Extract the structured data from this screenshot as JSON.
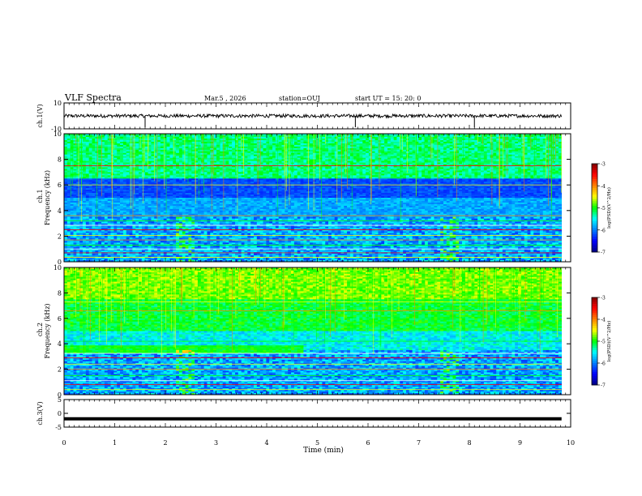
{
  "header": {
    "title": "VLF Spectra",
    "date": "Mar.5 , 2026",
    "station": "station=OUJ",
    "start": "start UT = 15: 20: 0"
  },
  "chart_data": [
    {
      "type": "line",
      "name": "ch1-waveform",
      "ylabel": "ch.1(V)",
      "ylim": [
        -10,
        10
      ],
      "yticks": [
        "10",
        "-10"
      ],
      "mean": 0,
      "noise_amplitude": 1.3,
      "spikes_min": [
        1.6,
        5.75,
        8.1
      ]
    },
    {
      "type": "heatmap",
      "name": "ch1-spectrogram",
      "ylabel_top": "ch.1",
      "ylabel": "Frequency (kHz)",
      "ylim": [
        0,
        10
      ],
      "yticks": [
        "0",
        "2",
        "4",
        "6",
        "8",
        "10"
      ],
      "colorbar": {
        "label": "log(PSD)(V^2/Hz)",
        "range": [
          -7,
          -3
        ],
        "ticks": [
          "-3",
          "-4",
          "-5",
          "-6",
          "-7"
        ]
      }
    },
    {
      "type": "heatmap",
      "name": "ch2-spectrogram",
      "ylabel_top": "ch.2",
      "ylabel": "Frequency (kHz)",
      "ylim": [
        0,
        10
      ],
      "yticks": [
        "0",
        "2",
        "4",
        "6",
        "8",
        "10"
      ],
      "colorbar": {
        "label": "log(PSD)(V^2/Hz)",
        "range": [
          -7,
          -3
        ],
        "ticks": [
          "-3",
          "-4",
          "-5",
          "-6",
          "-7"
        ]
      }
    },
    {
      "type": "line",
      "name": "ch3-waveform",
      "ylabel": "ch.3(V)",
      "ylim": [
        -5,
        5
      ],
      "yticks": [
        "5",
        "0",
        "-5"
      ],
      "values": [
        -2,
        -2
      ]
    }
  ],
  "xaxis": {
    "label": "Time (min)",
    "range": [
      0,
      10
    ],
    "data_end": 9.82,
    "ticks": [
      "0",
      "1",
      "2",
      "3",
      "4",
      "5",
      "6",
      "7",
      "8",
      "9",
      "10"
    ]
  },
  "colorbar_palette": [
    "#000080",
    "#0000ff",
    "#0080ff",
    "#00ffff",
    "#00ff00",
    "#ffff00",
    "#ff8000",
    "#ff0000",
    "#800000"
  ]
}
